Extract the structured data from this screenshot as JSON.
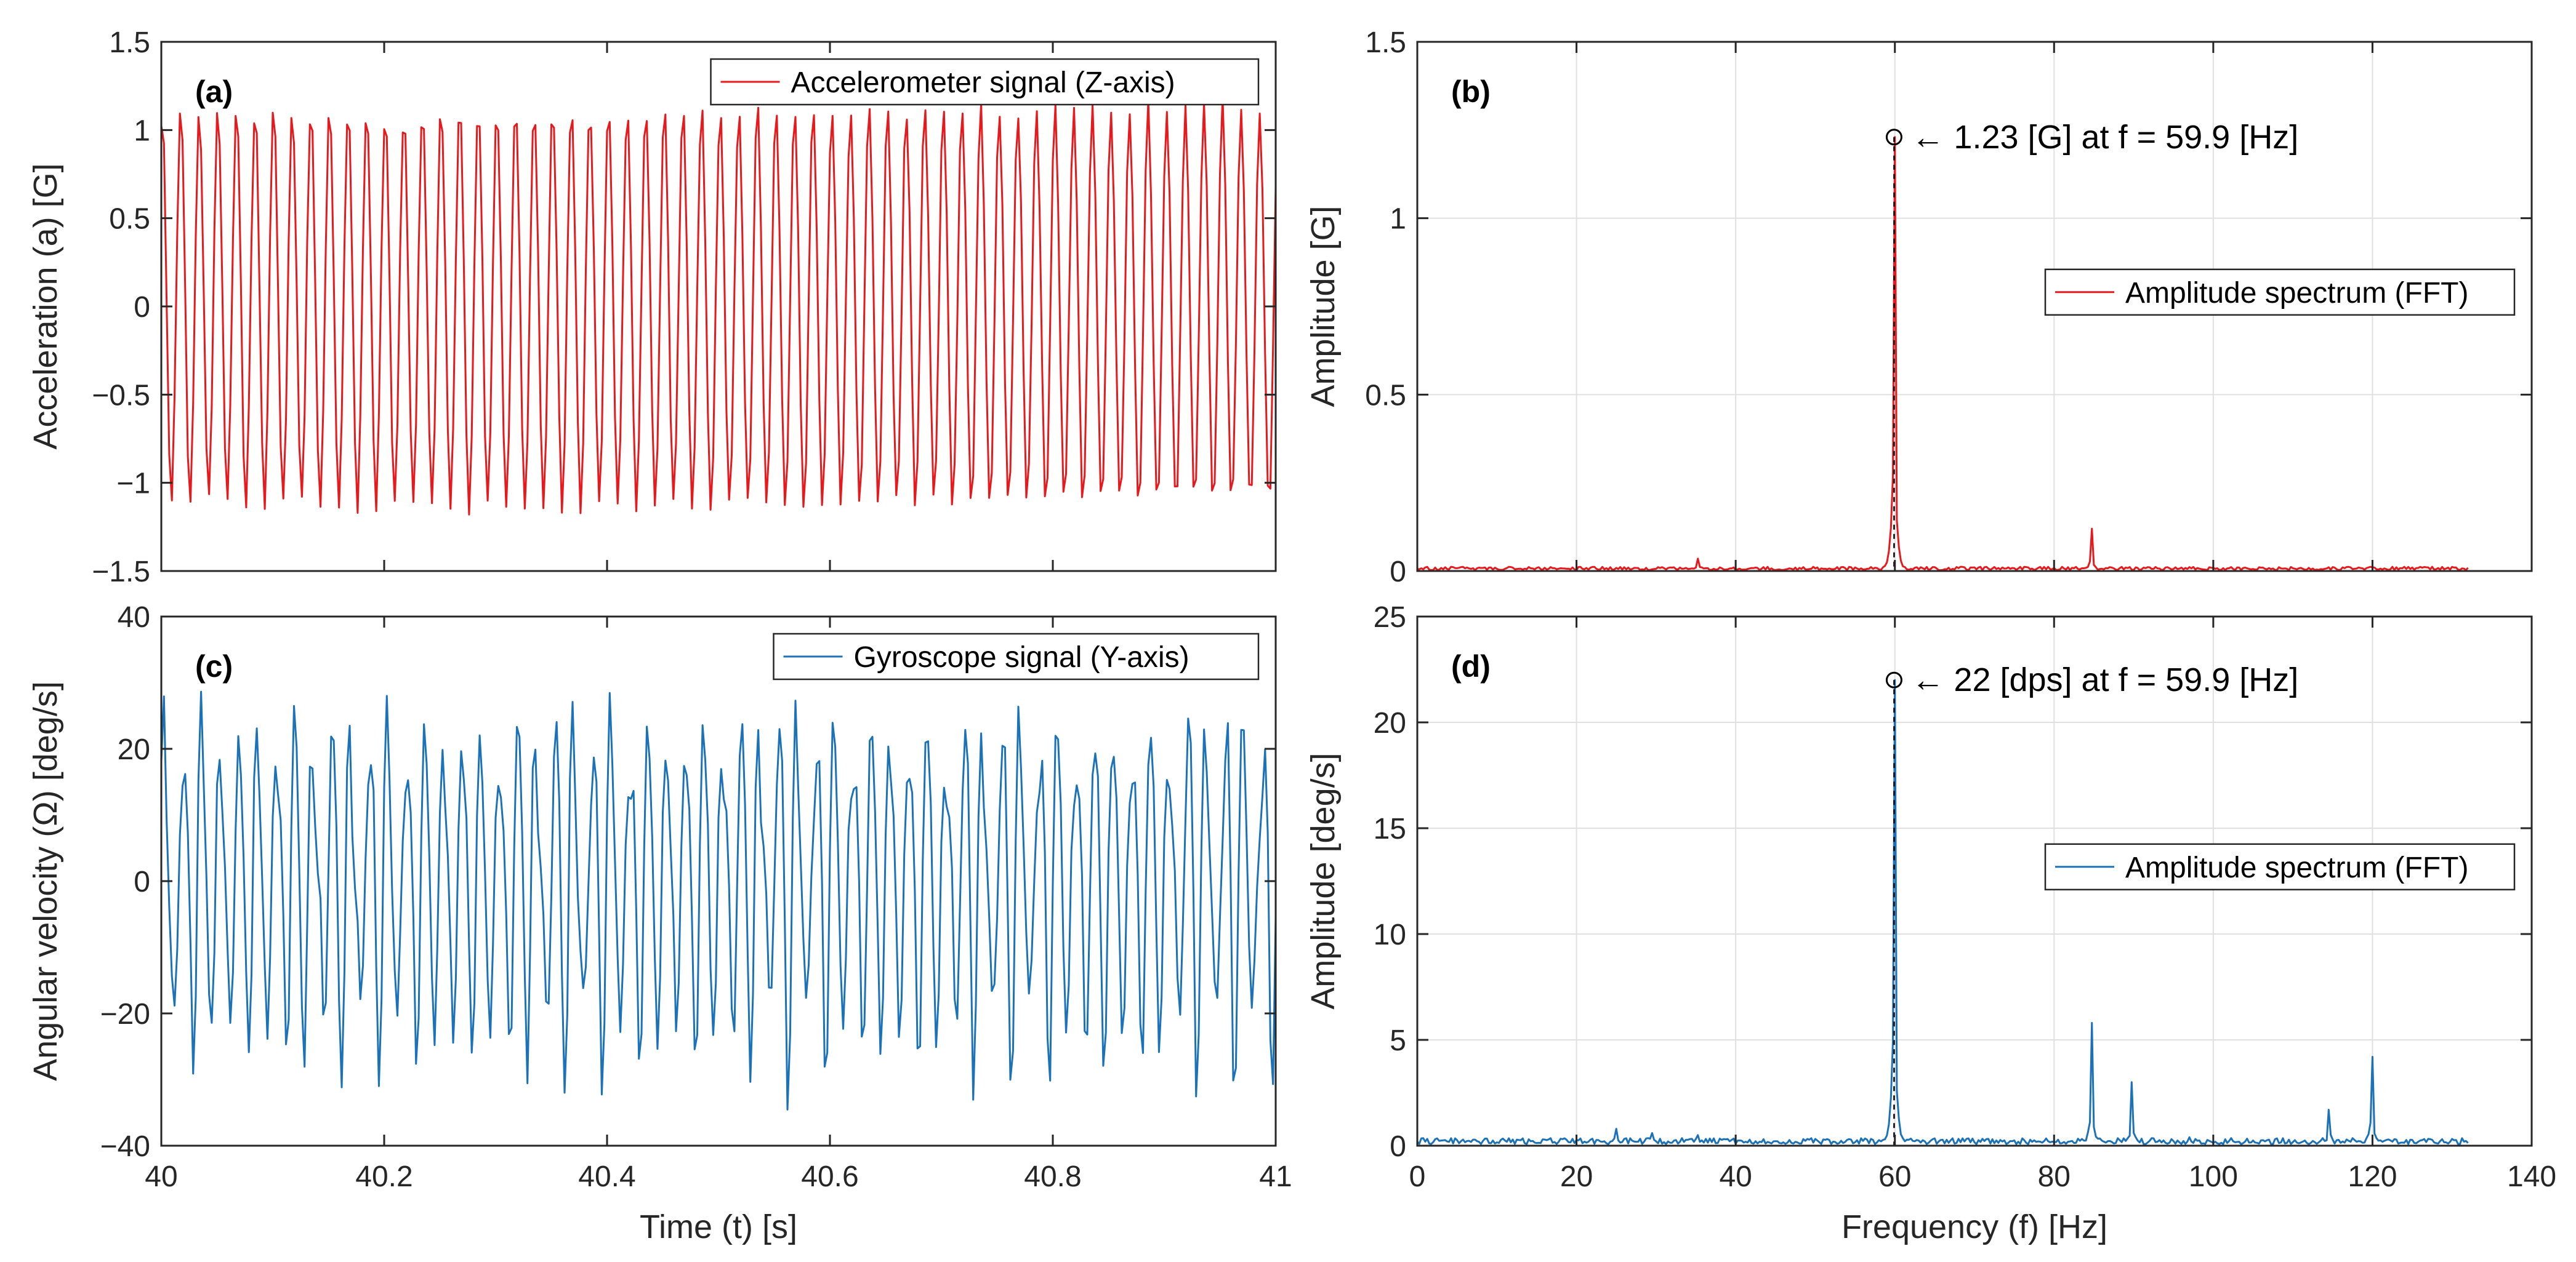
{
  "figure": {
    "background": "#ffffff"
  },
  "colors": {
    "accel": "#e8191c",
    "gyro": "#1b72b8",
    "grid": "#e0e0e0",
    "axis": "#262626"
  },
  "chart_data": [
    {
      "id": "a",
      "panel_label": "(a)",
      "type": "line",
      "title": "",
      "xlabel": "",
      "ylabel": "Acceleration (a) [G]",
      "xlim": [
        40,
        41
      ],
      "ylim": [
        -1.5,
        1.5
      ],
      "xticks": [
        40,
        40.2,
        40.4,
        40.6,
        40.8,
        41
      ],
      "xtick_labels": [],
      "yticks": [
        -1.5,
        -1,
        -0.5,
        0,
        0.5,
        1,
        1.5
      ],
      "ytick_labels": [
        "−1.5",
        "−1",
        "−0.5",
        "0",
        "0.5",
        "1",
        "1.5"
      ],
      "grid": false,
      "legend": {
        "position": "top-right",
        "label": "Accelerometer signal (Z-axis)"
      },
      "series": [
        {
          "name": "Accelerometer signal (Z-axis)",
          "color": "#e8191c",
          "signal": {
            "kind": "sinusoid",
            "frequency_hz": 59.9,
            "amplitude": 1.15,
            "samples_per_s": 420,
            "phase": 1.3
          }
        }
      ],
      "annotation": null
    },
    {
      "id": "b",
      "panel_label": "(b)",
      "type": "line",
      "title": "",
      "xlabel": "",
      "ylabel": "Amplitude [G]",
      "xlim": [
        0,
        140
      ],
      "ylim": [
        0,
        1.5
      ],
      "xticks": [
        0,
        20,
        40,
        60,
        80,
        100,
        120,
        140
      ],
      "xtick_labels": [],
      "yticks": [
        0,
        0.5,
        1,
        1.5
      ],
      "ytick_labels": [
        "0",
        "0.5",
        "1",
        "1.5"
      ],
      "grid": true,
      "legend": {
        "position": "center-right",
        "label": "Amplitude spectrum (FFT)"
      },
      "series": [
        {
          "name": "Amplitude spectrum (FFT)",
          "color": "#e8191c",
          "spectrum": {
            "f_max": 132,
            "noise": 0.006,
            "peaks": [
              {
                "f": 59.9,
                "a": 1.23
              },
              {
                "f": 84.7,
                "a": 0.12
              },
              {
                "f": 35.3,
                "a": 0.035
              },
              {
                "f": 120,
                "a": 0.01
              }
            ]
          }
        }
      ],
      "annotation": {
        "x": 59.9,
        "y": 1.23,
        "text": "← 1.23 [G] at f = 59.9 [Hz]"
      }
    },
    {
      "id": "c",
      "panel_label": "(c)",
      "type": "line",
      "title": "",
      "xlabel": "Time (t) [s]",
      "ylabel": "Angular velocity (Ω) [deg/s]",
      "xlim": [
        40,
        41
      ],
      "ylim": [
        -40,
        40
      ],
      "xticks": [
        40,
        40.2,
        40.4,
        40.6,
        40.8,
        41
      ],
      "xtick_labels": [
        "40",
        "40.2",
        "40.4",
        "40.6",
        "40.8",
        "41"
      ],
      "yticks": [
        -40,
        -20,
        0,
        20,
        40
      ],
      "ytick_labels": [
        "−40",
        "−20",
        "0",
        "20",
        "40"
      ],
      "grid": false,
      "legend": {
        "position": "top-right",
        "label": "Gyroscope signal (Y-axis)"
      },
      "series": [
        {
          "name": "Gyroscope signal (Y-axis)",
          "color": "#1b72b8",
          "signal": {
            "kind": "multitone",
            "samples_per_s": 420,
            "phase": 0.4,
            "components": [
              {
                "f": 59.9,
                "a": 22
              },
              {
                "f": 84.7,
                "a": 5.8
              },
              {
                "f": 120,
                "a": 4.2
              },
              {
                "f": 89.8,
                "a": 3.0
              }
            ]
          }
        }
      ],
      "annotation": null
    },
    {
      "id": "d",
      "panel_label": "(d)",
      "type": "line",
      "title": "",
      "xlabel": "Frequency (f) [Hz]",
      "ylabel": "Amplitude [deg/s]",
      "xlim": [
        0,
        140
      ],
      "ylim": [
        0,
        25
      ],
      "xticks": [
        0,
        20,
        40,
        60,
        80,
        100,
        120,
        140
      ],
      "xtick_labels": [
        "0",
        "20",
        "40",
        "60",
        "80",
        "100",
        "120",
        "140"
      ],
      "yticks": [
        0,
        5,
        10,
        15,
        20,
        25
      ],
      "ytick_labels": [
        "0",
        "5",
        "10",
        "15",
        "20",
        "25"
      ],
      "grid": true,
      "legend": {
        "position": "center-right",
        "label": "Amplitude spectrum (FFT)"
      },
      "series": [
        {
          "name": "Amplitude spectrum (FFT)",
          "color": "#1b72b8",
          "spectrum": {
            "f_max": 132,
            "noise": 0.18,
            "peaks": [
              {
                "f": 59.9,
                "a": 22
              },
              {
                "f": 84.7,
                "a": 5.8
              },
              {
                "f": 89.8,
                "a": 3.0
              },
              {
                "f": 119.9,
                "a": 4.2
              },
              {
                "f": 114.6,
                "a": 1.7
              },
              {
                "f": 24.9,
                "a": 0.8
              },
              {
                "f": 29.5,
                "a": 0.6
              },
              {
                "f": 35.3,
                "a": 0.5
              },
              {
                "f": 97,
                "a": 0.4
              }
            ]
          }
        }
      ],
      "annotation": {
        "x": 59.9,
        "y": 22,
        "text": "← 22 [dps] at f = 59.9 [Hz]"
      }
    }
  ]
}
